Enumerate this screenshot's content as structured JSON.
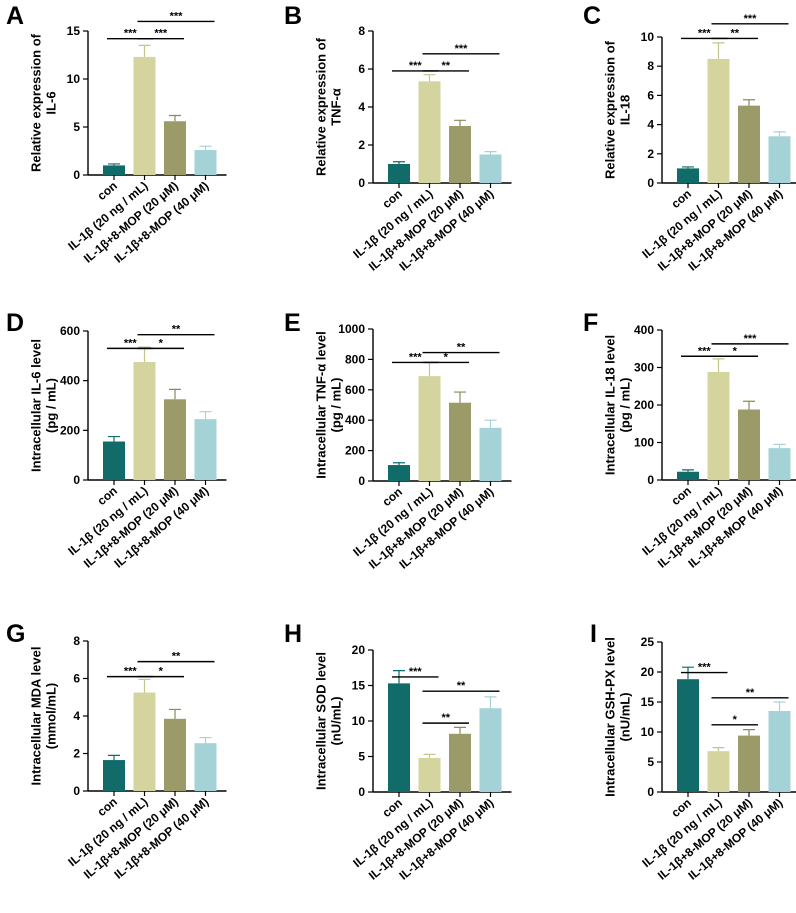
{
  "colors": {
    "con": "#116b69",
    "il1b": "#d3d49e",
    "mop20": "#9a9b68",
    "mop40": "#a5d2d6",
    "err_con": "#116b69",
    "err_il1b": "#c4c58a",
    "err_mop20": "#8a8b5a",
    "err_mop40": "#a5d2d6"
  },
  "chart_data": [
    {
      "panel": "A",
      "type": "bar",
      "ylabel": [
        "Relative expression of",
        "IL-6"
      ],
      "ylim": [
        0,
        15
      ],
      "yticks": [
        0,
        5,
        10,
        15
      ],
      "categories": [
        "con",
        "IL-1β (20 ng / mL)",
        "IL-1β+8-MOP (20 μM)",
        "IL-1β+8-MOP (40 μM)"
      ],
      "values": [
        1.0,
        12.3,
        5.6,
        2.6
      ],
      "errors": [
        0.15,
        1.2,
        0.6,
        0.4
      ],
      "significance": [
        {
          "from": 0,
          "to": 1,
          "label": "***",
          "y": 14.2
        },
        {
          "from": 1,
          "to": 2,
          "label": "***",
          "y": 14.2
        },
        {
          "from": 1,
          "to": 3,
          "label": "***",
          "y": 16.0
        }
      ]
    },
    {
      "panel": "B",
      "type": "bar",
      "ylabel": [
        "Relative expression of",
        "TNF-α"
      ],
      "ylim": [
        0,
        8
      ],
      "yticks": [
        0,
        2,
        4,
        6,
        8
      ],
      "categories": [
        "con",
        "IL-1β (20 ng / mL)",
        "IL-1β+8-MOP (20 μM)",
        "IL-1β+8-MOP (40 μM)"
      ],
      "values": [
        1.0,
        5.35,
        3.0,
        1.5
      ],
      "errors": [
        0.12,
        0.35,
        0.3,
        0.15
      ],
      "significance": [
        {
          "from": 0,
          "to": 1,
          "label": "***",
          "y": 5.9
        },
        {
          "from": 1,
          "to": 2,
          "label": "**",
          "y": 5.9
        },
        {
          "from": 1,
          "to": 3,
          "label": "***",
          "y": 6.8
        }
      ]
    },
    {
      "panel": "C",
      "type": "bar",
      "ylabel": [
        "Relative expression of",
        "IL-18"
      ],
      "ylim": [
        0,
        10
      ],
      "yticks": [
        0,
        2,
        4,
        6,
        8,
        10
      ],
      "categories": [
        "con",
        "IL-1β (20 ng / mL)",
        "IL-1β+8-MOP (20 μM)",
        "IL-1β+8-MOP (40 μM)"
      ],
      "values": [
        1.0,
        8.5,
        5.3,
        3.2
      ],
      "errors": [
        0.1,
        1.1,
        0.4,
        0.3
      ],
      "significance": [
        {
          "from": 0,
          "to": 1,
          "label": "***",
          "y": 9.9
        },
        {
          "from": 1,
          "to": 2,
          "label": "**",
          "y": 9.9
        },
        {
          "from": 1,
          "to": 3,
          "label": "***",
          "y": 10.9
        }
      ]
    },
    {
      "panel": "D",
      "type": "bar",
      "ylabel": [
        "Intracellular IL-6 level",
        "(pg / mL)"
      ],
      "ylim": [
        0,
        600
      ],
      "yticks": [
        0,
        200,
        400,
        600
      ],
      "categories": [
        "con",
        "IL-1β (20 ng / mL)",
        "IL-1β+8-MOP (20 μM)",
        "IL-1β+8-MOP (40 μM)"
      ],
      "values": [
        155,
        475,
        325,
        245
      ],
      "errors": [
        20,
        60,
        40,
        30
      ],
      "significance": [
        {
          "from": 0,
          "to": 1,
          "label": "***",
          "y": 530
        },
        {
          "from": 1,
          "to": 2,
          "label": "*",
          "y": 530
        },
        {
          "from": 1,
          "to": 3,
          "label": "**",
          "y": 585
        }
      ]
    },
    {
      "panel": "E",
      "type": "bar",
      "ylabel": [
        "Intracellular TNF-α level",
        "(pg / mL)"
      ],
      "ylim": [
        0,
        1000
      ],
      "yticks": [
        0,
        200,
        400,
        600,
        800,
        1000
      ],
      "categories": [
        "con",
        "IL-1β (20 ng / mL)",
        "IL-1β+8-MOP (20 μM)",
        "IL-1β+8-MOP (40 μM)"
      ],
      "values": [
        105,
        690,
        515,
        350
      ],
      "errors": [
        15,
        90,
        70,
        50
      ],
      "significance": [
        {
          "from": 0,
          "to": 1,
          "label": "***",
          "y": 780
        },
        {
          "from": 1,
          "to": 2,
          "label": "*",
          "y": 780
        },
        {
          "from": 1,
          "to": 3,
          "label": "**",
          "y": 845
        }
      ]
    },
    {
      "panel": "F",
      "type": "bar",
      "ylabel": [
        "Intracellular IL-18 level",
        "(pg / mL)"
      ],
      "ylim": [
        0,
        400
      ],
      "yticks": [
        0,
        100,
        200,
        300,
        400
      ],
      "categories": [
        "con",
        "IL-1β (20 ng / mL)",
        "IL-1β+8-MOP (20 μM)",
        "IL-1β+8-MOP (40 μM)"
      ],
      "values": [
        22,
        288,
        188,
        85
      ],
      "errors": [
        5,
        35,
        22,
        10
      ],
      "significance": [
        {
          "from": 0,
          "to": 1,
          "label": "***",
          "y": 330
        },
        {
          "from": 1,
          "to": 2,
          "label": "*",
          "y": 330
        },
        {
          "from": 1,
          "to": 3,
          "label": "***",
          "y": 363
        }
      ]
    },
    {
      "panel": "G",
      "type": "bar",
      "ylabel": [
        "Intracellular MDA level",
        "(mmol/mL)"
      ],
      "ylim": [
        0,
        8
      ],
      "yticks": [
        0,
        2,
        4,
        6,
        8
      ],
      "categories": [
        "con",
        "IL-1β (20 ng / mL)",
        "IL-1β+8-MOP (20 μM)",
        "IL-1β+8-MOP (40 μM)"
      ],
      "values": [
        1.65,
        5.25,
        3.85,
        2.55
      ],
      "errors": [
        0.25,
        0.7,
        0.5,
        0.3
      ],
      "significance": [
        {
          "from": 0,
          "to": 1,
          "label": "***",
          "y": 6.1
        },
        {
          "from": 1,
          "to": 2,
          "label": "*",
          "y": 6.1
        },
        {
          "from": 1,
          "to": 3,
          "label": "**",
          "y": 6.9
        }
      ]
    },
    {
      "panel": "H",
      "type": "bar",
      "ylabel": [
        "Intracellular SOD level",
        "(nU/mL)"
      ],
      "ylim": [
        0,
        20
      ],
      "yticks": [
        0,
        5,
        10,
        15,
        20
      ],
      "categories": [
        "con",
        "IL-1β (20 ng / mL)",
        "IL-1β+8-MOP (20 μM)",
        "IL-1β+8-MOP (40 μM)"
      ],
      "values": [
        15.3,
        4.8,
        8.2,
        11.8
      ],
      "errors": [
        1.8,
        0.5,
        0.9,
        1.6
      ],
      "significance": [
        {
          "from": 0,
          "to": 1,
          "label": "***",
          "y": 16.2
        },
        {
          "from": 1,
          "to": 2,
          "label": "**",
          "y": 9.7
        },
        {
          "from": 1,
          "to": 3,
          "label": "**",
          "y": 14.2
        }
      ]
    },
    {
      "panel": "I",
      "type": "bar",
      "ylabel": [
        "Intracellular GSH-PX level",
        "(nU/mL)"
      ],
      "ylim": [
        0,
        25
      ],
      "yticks": [
        0,
        5,
        10,
        15,
        20,
        25
      ],
      "categories": [
        "con",
        "IL-1β (20 ng / mL)",
        "IL-1β+8-MOP (20 μM)",
        "IL-1β+8-MOP (40 μM)"
      ],
      "values": [
        18.8,
        6.8,
        9.4,
        13.5
      ],
      "errors": [
        2.0,
        0.6,
        1.0,
        1.5
      ],
      "significance": [
        {
          "from": 0,
          "to": 1,
          "label": "***",
          "y": 19.9
        },
        {
          "from": 1,
          "to": 2,
          "label": "*",
          "y": 11.2
        },
        {
          "from": 1,
          "to": 3,
          "label": "**",
          "y": 15.7
        }
      ]
    }
  ]
}
